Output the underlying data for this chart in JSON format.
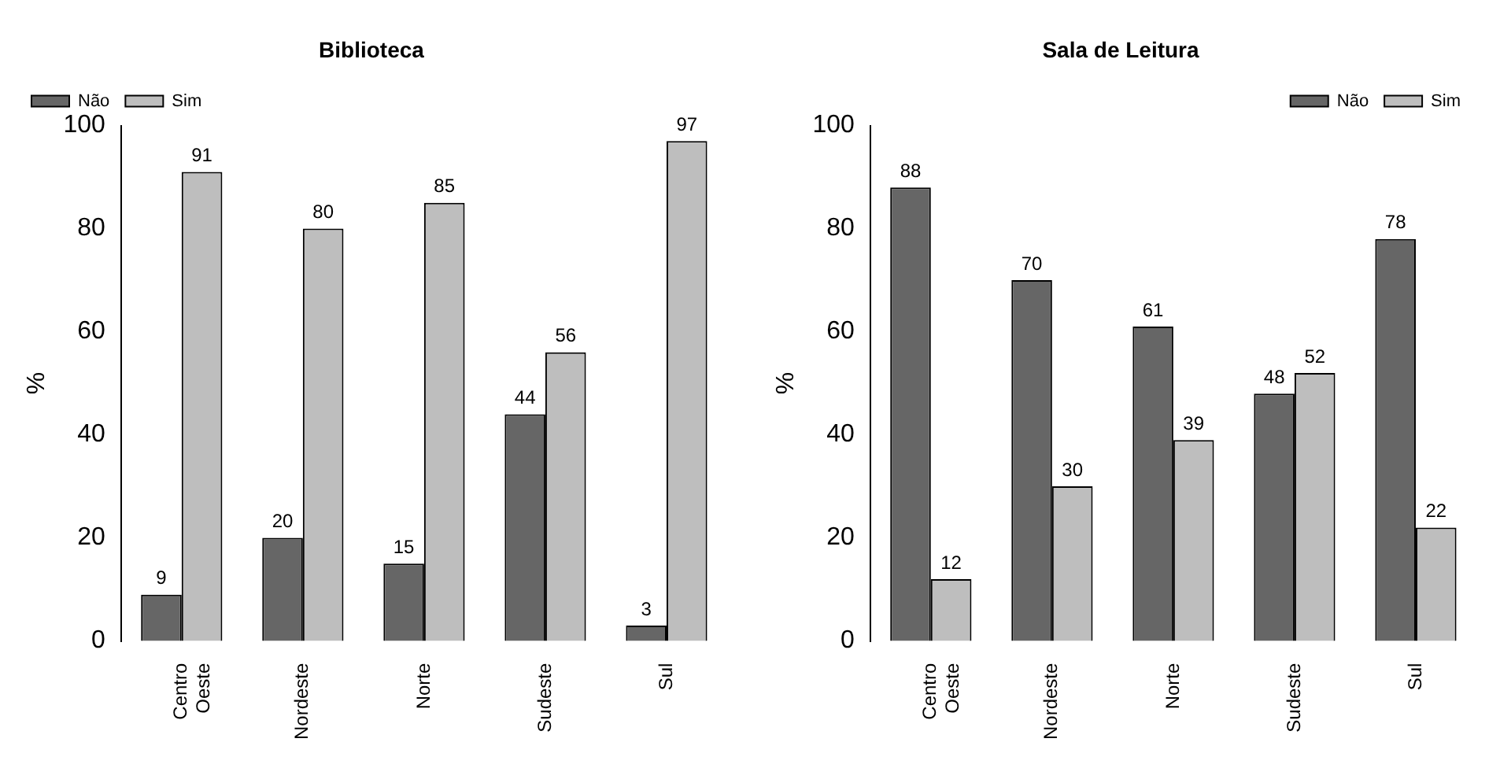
{
  "chart_data": [
    {
      "type": "bar",
      "title": "Biblioteca",
      "ylabel": "%",
      "categories": [
        "Centro Oeste",
        "Nordeste",
        "Norte",
        "Sudeste",
        "Sul"
      ],
      "series": [
        {
          "name": "Não",
          "color": "#666666",
          "values": [
            9,
            20,
            15,
            44,
            3
          ]
        },
        {
          "name": "Sim",
          "color": "#bebebe",
          "values": [
            91,
            80,
            85,
            56,
            97
          ]
        }
      ],
      "ylim": [
        0,
        100
      ],
      "yticks": [
        0,
        20,
        40,
        60,
        80,
        100
      ],
      "grid": false,
      "legend": "top left",
      "data_labels": true
    },
    {
      "type": "bar",
      "title": "Sala de Leitura",
      "ylabel": "%",
      "categories": [
        "Centro Oeste",
        "Nordeste",
        "Norte",
        "Sudeste",
        "Sul"
      ],
      "series": [
        {
          "name": "Não",
          "color": "#666666",
          "values": [
            88,
            70,
            61,
            48,
            78
          ]
        },
        {
          "name": "Sim",
          "color": "#bebebe",
          "values": [
            12,
            30,
            39,
            52,
            22
          ]
        }
      ],
      "ylim": [
        0,
        100
      ],
      "yticks": [
        0,
        20,
        40,
        60,
        80,
        100
      ],
      "grid": false,
      "legend": "top right",
      "data_labels": true
    }
  ]
}
